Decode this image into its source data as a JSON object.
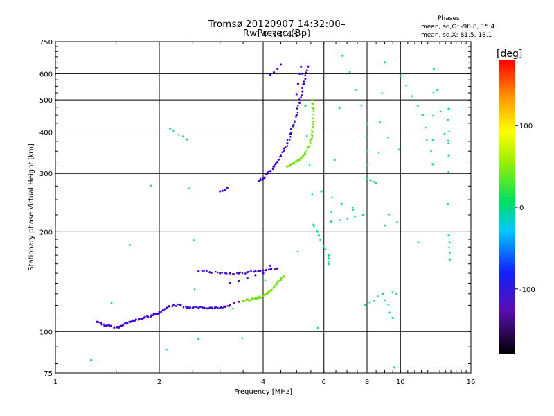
{
  "chart_data": {
    "type": "scatter",
    "title": "Tromsø 20120907 14:32:00–14:33:43",
    "subtitle": "RwPretec (Bp)",
    "xlabel": "Frequency [MHz]",
    "ylabel": "Stationary phase Virtual Height [km]",
    "x_scale": "log",
    "y_scale": "log",
    "xlim": [
      1,
      16
    ],
    "ylim": [
      75,
      750
    ],
    "x_ticks": [
      1,
      2,
      4,
      6,
      8,
      10,
      16
    ],
    "x_tick_labels": [
      "1",
      "2",
      "4",
      "6",
      "8",
      "10",
      "16"
    ],
    "y_ticks": [
      75,
      100,
      200,
      300,
      400,
      500,
      600,
      750
    ],
    "y_tick_labels": [
      "75",
      "100",
      "200",
      "300",
      "400",
      "500",
      "600",
      "750"
    ],
    "grid": true,
    "stats": {
      "label": "Phases",
      "o_line": "mean, sd,O: -98.8, 15.4",
      "x_line": "mean, sd,X:  81.5, 18.1"
    },
    "colorbar": {
      "label": "[deg]",
      "range": [
        -180,
        180
      ],
      "ticks": [
        100,
        0,
        -100
      ],
      "tick_labels": [
        "100",
        "0",
        "-100"
      ]
    },
    "point_groups": [
      {
        "x": [
          1.32,
          1.36,
          1.4,
          1.44,
          1.48,
          1.52,
          1.56,
          1.6,
          1.65,
          1.7,
          1.75,
          1.8,
          1.85,
          1.9,
          1.95,
          2.0,
          2.05,
          2.1
        ],
        "y": [
          107,
          106,
          104,
          104,
          103,
          103,
          104,
          106,
          107,
          108,
          109,
          110,
          111,
          112,
          113,
          114,
          116,
          118
        ],
        "phase": -100
      },
      {
        "x": [
          2.1,
          2.2,
          2.3,
          2.4,
          2.5,
          2.6,
          2.7,
          2.8,
          2.9,
          3.0,
          3.1,
          3.2
        ],
        "y": [
          118,
          120,
          120,
          118,
          118,
          118,
          118,
          118,
          118,
          118,
          119,
          120
        ],
        "phase": -98
      },
      {
        "x": [
          3.2,
          3.3,
          3.4,
          3.5,
          3.6
        ],
        "y": [
          120,
          122,
          123,
          124,
          125
        ],
        "phase": -130
      },
      {
        "x": [
          3.5,
          3.6,
          3.7,
          3.8,
          3.9,
          4.0,
          4.1,
          4.2,
          4.3,
          4.4,
          4.5,
          4.6
        ],
        "y": [
          124,
          125,
          125,
          126,
          127,
          128,
          130,
          133,
          136,
          140,
          143,
          147
        ],
        "phase": 80
      },
      {
        "x": [
          2.6,
          2.8,
          3.0,
          3.2,
          3.4,
          3.6,
          3.8,
          4.0,
          4.2,
          4.4
        ],
        "y": [
          152,
          151,
          150,
          150,
          150,
          151,
          152,
          153,
          154,
          155
        ],
        "phase": -100
      },
      {
        "x": [
          3.2,
          3.4,
          3.6,
          3.8,
          4.0,
          4.2
        ],
        "y": [
          140,
          142,
          145,
          148,
          150,
          158
        ],
        "phase": -105
      },
      {
        "x": [
          3.0,
          3.05,
          3.1,
          3.15
        ],
        "y": [
          265,
          266,
          268,
          272
        ],
        "phase": -100
      },
      {
        "x": [
          3.9,
          4.0,
          4.1,
          4.2,
          4.3,
          4.4,
          4.5,
          4.6,
          4.7,
          4.8,
          4.9,
          5.0,
          5.1,
          5.2,
          5.3,
          5.4
        ],
        "y": [
          285,
          290,
          298,
          305,
          315,
          325,
          338,
          352,
          370,
          395,
          420,
          450,
          490,
          530,
          580,
          630
        ],
        "phase": -100
      },
      {
        "x": [
          5.0,
          5.05,
          5.1,
          5.15,
          5.2,
          5.25
        ],
        "y": [
          520,
          560,
          600,
          630,
          600,
          560
        ],
        "phase": -100
      },
      {
        "x": [
          4.7,
          4.8,
          4.9,
          5.0,
          5.1,
          5.2,
          5.3,
          5.4,
          5.5,
          5.55,
          5.6,
          5.6,
          5.55
        ],
        "y": [
          315,
          318,
          322,
          326,
          330,
          336,
          345,
          360,
          380,
          400,
          430,
          470,
          500
        ],
        "phase": 80
      },
      {
        "x": [
          4.2,
          4.3,
          4.4,
          4.5
        ],
        "y": [
          595,
          605,
          620,
          640
        ],
        "phase": -100
      },
      {
        "x": [
          5.3,
          5.6,
          5.8,
          6.2,
          6.2,
          6.8,
          8.0,
          8.0,
          8.5,
          9.0,
          9.6,
          10.0,
          11.6,
          12.4,
          12.5,
          13.8,
          13.8,
          13.8,
          13.9,
          5.9,
          7.8,
          6.3,
          2.6,
          2.4,
          2.15,
          1.27,
          9.5,
          8.9,
          7.9
        ],
        "y": [
          480,
          210,
          195,
          170,
          160,
          680,
          425,
          290,
          280,
          650,
          78,
          590,
          450,
          320,
          620,
          340,
          470,
          195,
          165,
          265,
          225,
          215,
          95,
          380,
          410,
          82,
          110,
          130,
          120
        ],
        "phase": 10
      }
    ]
  }
}
